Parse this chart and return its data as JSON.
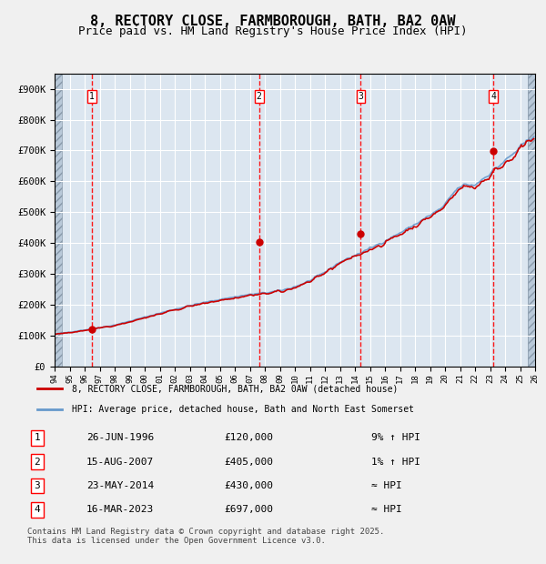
{
  "title": "8, RECTORY CLOSE, FARMBOROUGH, BATH, BA2 0AW",
  "subtitle": "Price paid vs. HM Land Registry's House Price Index (HPI)",
  "x_start_year": 1994,
  "x_end_year": 2026,
  "ylim": [
    0,
    950000
  ],
  "yticks": [
    0,
    100000,
    200000,
    300000,
    400000,
    500000,
    600000,
    700000,
    800000,
    900000
  ],
  "ytick_labels": [
    "£0",
    "£100K",
    "£200K",
    "£300K",
    "£400K",
    "£500K",
    "£600K",
    "£700K",
    "£800K",
    "£900K"
  ],
  "sale_dates": [
    1996.49,
    2007.62,
    2014.39,
    2023.21
  ],
  "sale_prices": [
    120000,
    405000,
    430000,
    697000
  ],
  "sale_labels": [
    "1",
    "2",
    "3",
    "4"
  ],
  "vline_color": "#ff0000",
  "dot_color": "#cc0000",
  "hpi_line_color": "#6699cc",
  "price_line_color": "#cc0000",
  "bg_color": "#dce6f0",
  "plot_bg_color": "#dce6f0",
  "grid_color": "#ffffff",
  "hatch_color": "#c0c8d8",
  "legend_line1": "8, RECTORY CLOSE, FARMBOROUGH, BATH, BA2 0AW (detached house)",
  "legend_line2": "HPI: Average price, detached house, Bath and North East Somerset",
  "table_rows": [
    {
      "label": "1",
      "date": "26-JUN-1996",
      "price": "£120,000",
      "rel": "9% ↑ HPI"
    },
    {
      "label": "2",
      "date": "15-AUG-2007",
      "price": "£405,000",
      "rel": "1% ↑ HPI"
    },
    {
      "label": "3",
      "date": "23-MAY-2014",
      "price": "£430,000",
      "rel": "≈ HPI"
    },
    {
      "label": "4",
      "date": "16-MAR-2023",
      "price": "£697,000",
      "rel": "≈ HPI"
    }
  ],
  "footer": "Contains HM Land Registry data © Crown copyright and database right 2025.\nThis data is licensed under the Open Government Licence v3.0.",
  "title_fontsize": 11,
  "subtitle_fontsize": 9,
  "axis_fontsize": 8,
  "label_fontsize": 7.5
}
